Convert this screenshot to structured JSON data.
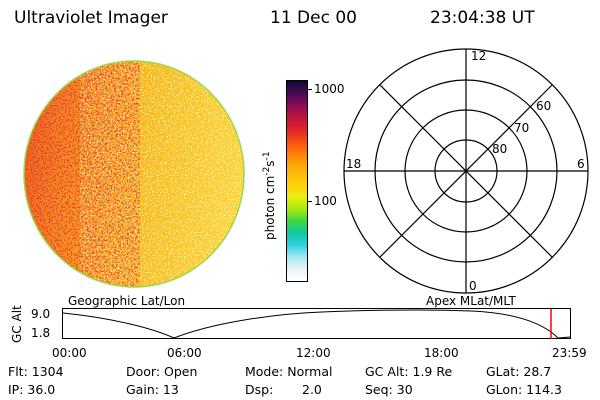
{
  "header": {
    "title": "Ultraviolet Imager",
    "date": "11 Dec 00",
    "time": "23:04:38 UT"
  },
  "image_panel": {
    "colors": {
      "rim": "#9ad94a",
      "fill": "#f4b41c"
    }
  },
  "colorbar": {
    "label": "photon cm",
    "label_exp1": "-2",
    "label_mid": "s",
    "label_exp2": "-1",
    "ticks": [
      "1000",
      "100"
    ]
  },
  "polar_plot": {
    "mlt_labels": {
      "top": "12",
      "bottom": "0",
      "left": "18",
      "right": "6"
    },
    "lat_labels": [
      "60",
      "70",
      "80"
    ]
  },
  "timeline": {
    "left_title": "Geographic Lat/Lon",
    "right_title": "Apex MLat/MLT",
    "y_axis_label": "GC Alt",
    "y_ticks": [
      "9.0",
      "1.8"
    ],
    "x_ticks": [
      "00:00",
      "06:00",
      "12:00",
      "18:00",
      "23:59"
    ],
    "marker_color": "#ff0000"
  },
  "info": {
    "flt": "Flt: 1304",
    "ip": "IP: 36.0",
    "door": "Door: Open",
    "gain": "Gain: 13",
    "mode": "Mode: Normal",
    "dsp_label": "Dsp:",
    "dsp_value": "2.0",
    "gc_alt": "GC Alt: 1.9 Re",
    "seq": "Seq: 30",
    "glat": "GLat: 28.7",
    "glon": "GLon: 114.3"
  }
}
